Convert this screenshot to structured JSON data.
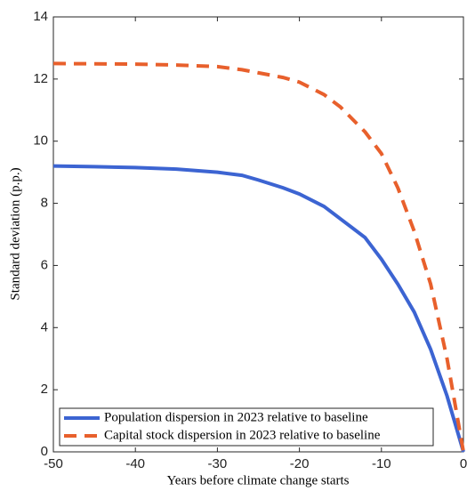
{
  "chart_data": {
    "type": "line",
    "xlabel": "Years before climate change starts",
    "ylabel": "Standard deviation (p.p.)",
    "x": [
      -50,
      -45,
      -40,
      -35,
      -30,
      -27,
      -25,
      -22,
      -20,
      -17,
      -15,
      -12,
      -10,
      -8,
      -6,
      -4,
      -2,
      0
    ],
    "series": [
      {
        "name": "Population dispersion in 2023 relative to baseline",
        "color": "#3c64d2",
        "dash": "solid",
        "values": [
          9.2,
          9.18,
          9.15,
          9.1,
          9.0,
          8.9,
          8.75,
          8.5,
          8.3,
          7.9,
          7.5,
          6.9,
          6.2,
          5.4,
          4.5,
          3.3,
          1.8,
          0
        ]
      },
      {
        "name": "Capital stock dispersion in 2023 relative to baseline",
        "color": "#e8602c",
        "dash": "dashed",
        "values": [
          12.5,
          12.49,
          12.48,
          12.45,
          12.4,
          12.3,
          12.2,
          12.05,
          11.9,
          11.5,
          11.1,
          10.3,
          9.6,
          8.5,
          7.1,
          5.4,
          3.0,
          0
        ]
      }
    ],
    "xlim": [
      -50,
      0
    ],
    "xticks": [
      -50,
      -40,
      -30,
      -20,
      -10,
      0
    ],
    "ylim": [
      0,
      14
    ],
    "yticks": [
      0,
      2,
      4,
      6,
      8,
      10,
      12,
      14
    ],
    "legend": "lower left"
  }
}
